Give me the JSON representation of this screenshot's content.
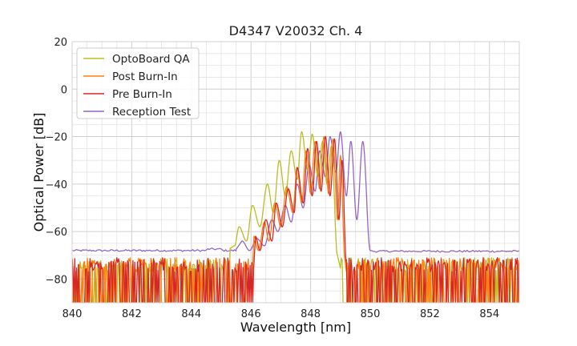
{
  "chart_data": {
    "type": "line",
    "title": "D4347 V20032 Ch. 4",
    "xlabel": "Wavelength [nm]",
    "ylabel": "Optical Power [dB]",
    "xlim": [
      840,
      855
    ],
    "ylim": [
      -90,
      20
    ],
    "xticks": [
      840,
      842,
      844,
      846,
      848,
      850,
      852,
      854
    ],
    "yticks": [
      20,
      0,
      -20,
      -40,
      -60,
      -80
    ],
    "x_tick_labels": [
      "840",
      "842",
      "844",
      "846",
      "848",
      "850",
      "852",
      "854"
    ],
    "y_tick_labels": [
      "20",
      "0",
      "−20",
      "−40",
      "−60",
      "−80"
    ],
    "grid": true,
    "legend_position": "top-left",
    "noise_floor_note_range": [
      -90,
      -70
    ],
    "series": [
      {
        "name": "OptoBoard QA",
        "color": "#bcbd22",
        "noise_range": [
          [
            840,
            845.3
          ],
          [
            849.0,
            855
          ]
        ],
        "peaks": [
          [
            845.3,
            -67
          ],
          [
            845.6,
            -58
          ],
          [
            846.05,
            -49
          ],
          [
            846.55,
            -40
          ],
          [
            846.95,
            -30
          ],
          [
            847.35,
            -26
          ],
          [
            847.7,
            -18
          ],
          [
            848.05,
            -19
          ],
          [
            848.4,
            -22
          ],
          [
            848.7,
            -24
          ]
        ],
        "troughs": [
          [
            845.45,
            -66
          ],
          [
            845.85,
            -64
          ],
          [
            846.3,
            -58
          ],
          [
            846.75,
            -52
          ],
          [
            847.15,
            -45
          ],
          [
            847.55,
            -38
          ],
          [
            847.9,
            -34
          ],
          [
            848.25,
            -37
          ],
          [
            848.55,
            -40
          ],
          [
            848.9,
            -70
          ]
        ]
      },
      {
        "name": "Post Burn-In",
        "color": "#ff7f0e",
        "noise_range": [
          [
            840,
            846.0
          ],
          [
            849.2,
            855
          ]
        ],
        "peaks": [
          [
            846.1,
            -62
          ],
          [
            846.45,
            -56
          ],
          [
            846.8,
            -48
          ],
          [
            847.2,
            -41
          ],
          [
            847.55,
            -33
          ],
          [
            847.85,
            -26
          ],
          [
            848.15,
            -22
          ],
          [
            848.45,
            -20
          ],
          [
            848.75,
            -21
          ],
          [
            849.0,
            -28
          ]
        ],
        "troughs": [
          [
            846.25,
            -68
          ],
          [
            846.6,
            -64
          ],
          [
            847.0,
            -58
          ],
          [
            847.4,
            -52
          ],
          [
            847.7,
            -48
          ],
          [
            848.0,
            -44
          ],
          [
            848.3,
            -42
          ],
          [
            848.6,
            -44
          ],
          [
            848.9,
            -55
          ],
          [
            849.15,
            -72
          ]
        ]
      },
      {
        "name": "Pre Burn-In",
        "color": "#d62728",
        "noise_range": [
          [
            840,
            846.1
          ],
          [
            849.2,
            855
          ]
        ],
        "peaks": [
          [
            846.15,
            -62
          ],
          [
            846.5,
            -55
          ],
          [
            846.85,
            -48
          ],
          [
            847.25,
            -42
          ],
          [
            847.55,
            -33
          ],
          [
            847.9,
            -25
          ],
          [
            848.2,
            -22
          ],
          [
            848.5,
            -20
          ],
          [
            848.8,
            -21
          ],
          [
            849.05,
            -30
          ]
        ],
        "troughs": [
          [
            846.3,
            -68
          ],
          [
            846.7,
            -64
          ],
          [
            847.05,
            -58
          ],
          [
            847.45,
            -52
          ],
          [
            847.75,
            -48
          ],
          [
            848.05,
            -45
          ],
          [
            848.35,
            -43
          ],
          [
            848.65,
            -45
          ],
          [
            848.95,
            -55
          ],
          [
            849.2,
            -73
          ]
        ]
      },
      {
        "name": "Reception Test",
        "color": "#9467bd",
        "baseline": -68,
        "peaks": [
          [
            845.7,
            -64
          ],
          [
            846.2,
            -63
          ],
          [
            846.7,
            -55
          ],
          [
            847.15,
            -49
          ],
          [
            847.55,
            -40
          ],
          [
            847.95,
            -32
          ],
          [
            848.3,
            -26
          ],
          [
            848.65,
            -20
          ],
          [
            849.0,
            -18
          ],
          [
            849.35,
            -22
          ],
          [
            849.75,
            -22
          ]
        ],
        "troughs": [
          [
            845.95,
            -68
          ],
          [
            846.45,
            -66
          ],
          [
            846.9,
            -60
          ],
          [
            847.35,
            -56
          ],
          [
            847.75,
            -50
          ],
          [
            848.15,
            -43
          ],
          [
            848.5,
            -37
          ],
          [
            848.85,
            -35
          ],
          [
            849.2,
            -45
          ],
          [
            849.55,
            -55
          ],
          [
            850.0,
            -68
          ]
        ]
      }
    ]
  }
}
